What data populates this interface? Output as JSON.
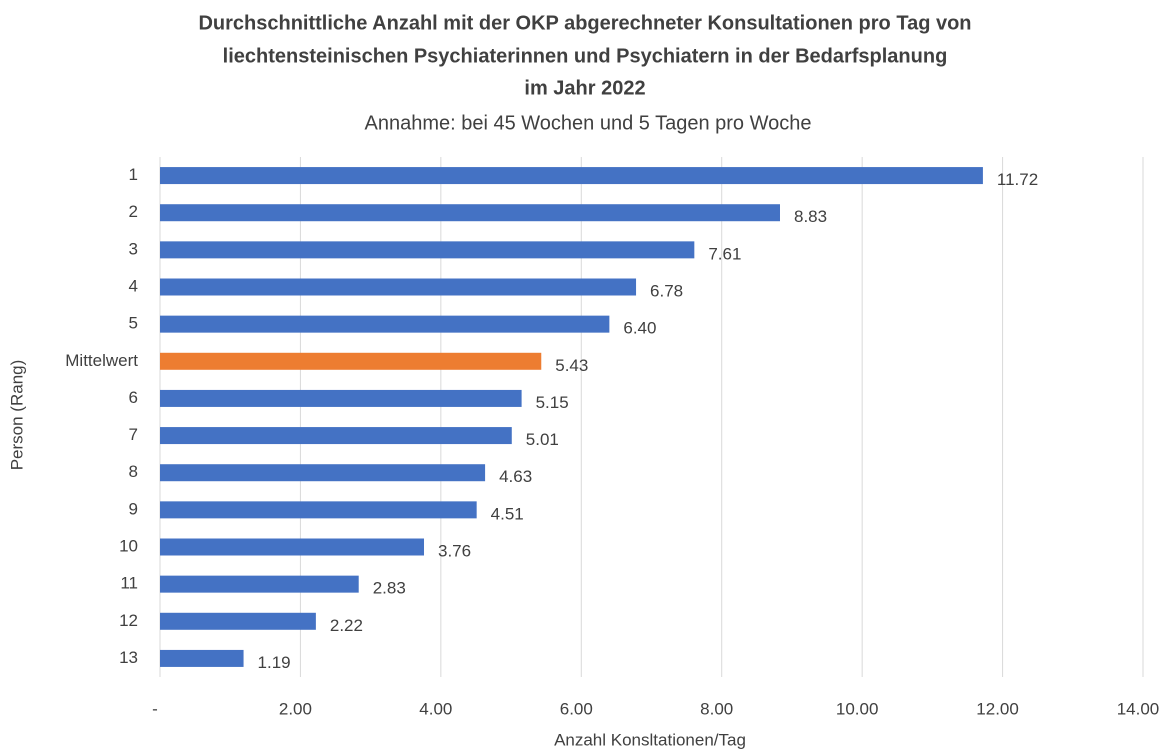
{
  "chart_data": {
    "type": "bar",
    "orientation": "horizontal",
    "title": [
      "Durchschnittliche Anzahl mit der OKP abgerechneter Konsultationen pro Tag von",
      "liechtensteinischen Psychiaterinnen und Psychiatern in der Bedarfsplanung",
      "im Jahr 2022"
    ],
    "subtitle": "Annahme: bei 45 Wochen und 5 Tagen pro Woche",
    "x_label": "Anzahl Konsltationen/Tag",
    "y_label": "Person (Rang)",
    "categories": [
      "1",
      "2",
      "3",
      "4",
      "5",
      "Mittelwert",
      "6",
      "7",
      "8",
      "9",
      "10",
      "11",
      "12",
      "13"
    ],
    "values": [
      11.72,
      8.83,
      7.61,
      6.78,
      6.4,
      5.43,
      5.15,
      5.01,
      4.63,
      4.51,
      3.76,
      2.83,
      2.22,
      1.19
    ],
    "value_labels": [
      "11.72",
      "8.83",
      "7.61",
      "6.78",
      "6.40",
      "5.43",
      "5.15",
      "5.01",
      "4.63",
      "4.51",
      "3.76",
      "2.83",
      "2.22",
      "1.19"
    ],
    "colors": [
      "#4472c4",
      "#4472c4",
      "#4472c4",
      "#4472c4",
      "#4472c4",
      "#ed7d31",
      "#4472c4",
      "#4472c4",
      "#4472c4",
      "#4472c4",
      "#4472c4",
      "#4472c4",
      "#4472c4",
      "#4472c4"
    ],
    "xlim": [
      0,
      14
    ],
    "xticks": [
      {
        "value": 0,
        "label": "-"
      },
      {
        "value": 2,
        "label": "2.00"
      },
      {
        "value": 4,
        "label": "4.00"
      },
      {
        "value": 6,
        "label": "6.00"
      },
      {
        "value": 8,
        "label": "8.00"
      },
      {
        "value": 10,
        "label": "10.00"
      },
      {
        "value": 12,
        "label": "12.00"
      },
      {
        "value": 14,
        "label": "14.00"
      }
    ],
    "grid": true
  }
}
